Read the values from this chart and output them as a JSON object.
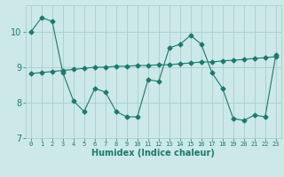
{
  "xlabel": "Humidex (Indice chaleur)",
  "x": [
    0,
    1,
    2,
    3,
    4,
    5,
    6,
    7,
    8,
    9,
    10,
    11,
    12,
    13,
    14,
    15,
    16,
    17,
    18,
    19,
    20,
    21,
    22,
    23
  ],
  "line1": [
    10.0,
    10.4,
    10.3,
    8.85,
    8.05,
    7.75,
    8.4,
    8.3,
    7.75,
    7.6,
    7.6,
    8.65,
    8.6,
    9.55,
    9.65,
    9.9,
    9.65,
    8.85,
    8.4,
    7.55,
    7.5,
    7.65,
    7.6,
    9.35
  ],
  "line2": [
    8.82,
    8.85,
    8.88,
    8.91,
    8.94,
    8.97,
    9.0,
    9.0,
    9.03,
    9.03,
    9.05,
    9.05,
    9.07,
    9.07,
    9.1,
    9.12,
    9.15,
    9.15,
    9.18,
    9.2,
    9.22,
    9.25,
    9.27,
    9.3
  ],
  "line_color": "#1a7a6e",
  "bg_color": "#cce8e8",
  "grid_color": "#aacece",
  "ylim": [
    7.0,
    10.75
  ],
  "yticks": [
    7,
    8,
    9,
    10
  ],
  "xlim": [
    -0.5,
    23.5
  ],
  "marker_size": 2.5
}
